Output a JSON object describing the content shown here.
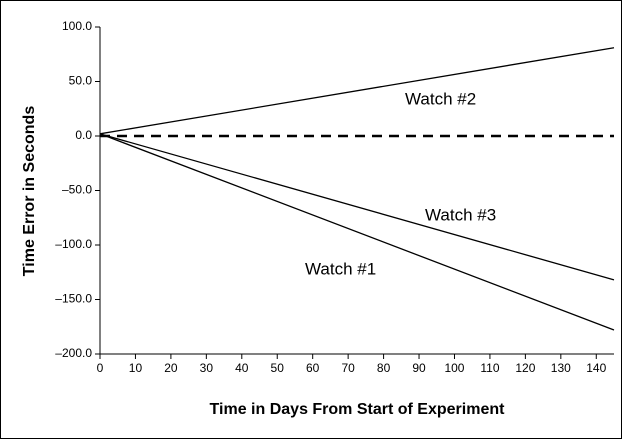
{
  "chart_data": {
    "type": "line",
    "x_label": "Time in Days From Start of Experiment",
    "y_label": "Time Error in Seconds",
    "x": [
      0,
      145
    ],
    "series": [
      {
        "name": "Watch #1",
        "color": "#000000",
        "values": [
          2,
          -178
        ]
      },
      {
        "name": "Watch #2",
        "color": "#000000",
        "values": [
          2,
          81
        ]
      },
      {
        "name": "Watch #3",
        "color": "#000000",
        "values": [
          2,
          -132
        ]
      }
    ],
    "reference_line": {
      "value": 0,
      "style": "dashed"
    },
    "xlim": [
      0,
      145
    ],
    "xticks": [
      0,
      10,
      20,
      30,
      40,
      50,
      60,
      70,
      80,
      90,
      100,
      110,
      120,
      130,
      140
    ],
    "ylim": [
      -200,
      100
    ],
    "yticks": [
      {
        "value": -200,
        "label": "–200.0"
      },
      {
        "value": -150,
        "label": "–150.0"
      },
      {
        "value": -100,
        "label": "–100.0"
      },
      {
        "value": -50,
        "label": "–50.0"
      },
      {
        "value": 0,
        "label": "0.0"
      },
      {
        "value": 50,
        "label": "50.0"
      },
      {
        "value": 100,
        "label": "100.0"
      }
    ],
    "grid": false
  }
}
